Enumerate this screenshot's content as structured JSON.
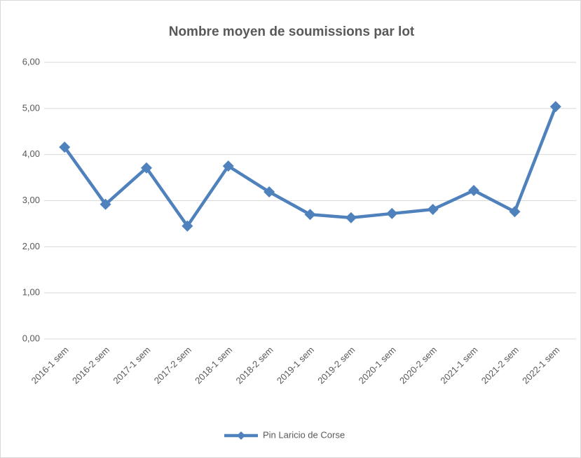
{
  "chart_data": {
    "type": "line",
    "title": "Nombre moyen  de soumissions par lot",
    "categories": [
      "2016-1 sem",
      "2016-2 sem",
      "2017-1 sem",
      "2017-2 sem",
      "2018-1 sem",
      "2018-2 sem",
      "2019-1 sem",
      "2019-2 sem",
      "2020-1 sem",
      "2020-2 sem",
      "2021-1 sem",
      "2021-2 sem",
      "2022-1 sem"
    ],
    "series": [
      {
        "name": "Pin Laricio de Corse",
        "color": "#4f81bd",
        "values": [
          4.16,
          2.92,
          3.71,
          2.45,
          3.75,
          3.19,
          2.7,
          2.63,
          2.72,
          2.81,
          3.22,
          2.76,
          5.04
        ]
      }
    ],
    "ylim": [
      0,
      6
    ],
    "yticks": [
      {
        "value": 0,
        "label": "0,00"
      },
      {
        "value": 1,
        "label": "1,00"
      },
      {
        "value": 2,
        "label": "2,00"
      },
      {
        "value": 3,
        "label": "3,00"
      },
      {
        "value": 4,
        "label": "4,00"
      },
      {
        "value": 5,
        "label": "5,00"
      },
      {
        "value": 6,
        "label": "6,00"
      }
    ],
    "grid": true,
    "legend": "bottom"
  }
}
